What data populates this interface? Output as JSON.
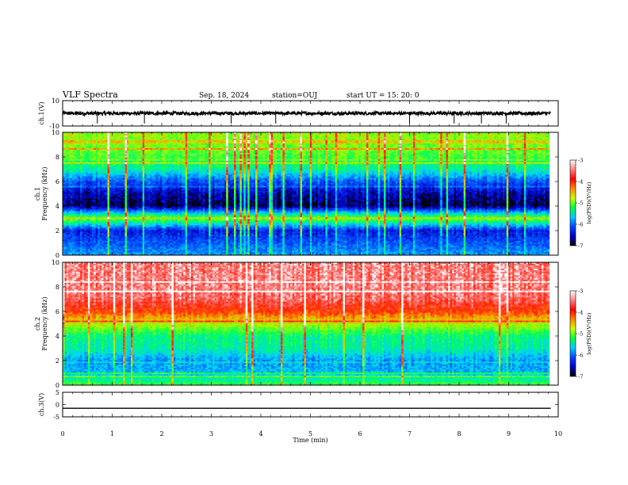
{
  "header": {
    "title": "VLF Spectra",
    "date": "Sep. 18, 2024",
    "station": "station=OUJ",
    "start": "start  UT  =   15: 20: 0"
  },
  "colorbar": {
    "label": "log(PSD)(V²/Hz)",
    "ticks": [
      "-3",
      "-4",
      "-5",
      "-6",
      "-7"
    ],
    "range": [
      -7,
      -3
    ],
    "colors": [
      "#000000",
      "#0000cc",
      "#0044ff",
      "#00ccff",
      "#00ff44",
      "#ccff00",
      "#ff8800",
      "#ff0000",
      "#ff8080",
      "#ffffff"
    ]
  },
  "chart_data": [
    {
      "type": "line",
      "panel": "ch.1 waveform",
      "ylabel": "ch.1(V)",
      "ylim": [
        -10,
        10
      ],
      "yticks": [
        "10",
        "-10"
      ],
      "xlim": [
        0,
        10
      ],
      "baseline": 0,
      "spikes_min": [
        0.7,
        1.65,
        3.4,
        4.3,
        7.0,
        7.9,
        8.45,
        8.95
      ]
    },
    {
      "type": "heatmap",
      "panel": "ch.1 spectrogram",
      "ylabel": "ch.1\nFrequency (kHz)",
      "ylim": [
        0,
        10
      ],
      "yticks": [
        "10",
        "8",
        "6",
        "4",
        "2",
        "0"
      ],
      "xlim": [
        0,
        10
      ],
      "data_end_min": 9.82,
      "band_profile_kHz": [
        0,
        1,
        2,
        3,
        4,
        5,
        6,
        7,
        8,
        9,
        10
      ],
      "band_profile_log_psd": [
        -5.9,
        -6.2,
        -6.5,
        -4.8,
        -6.9,
        -6.7,
        -6.2,
        -5.4,
        -5.0,
        -4.8,
        -4.7
      ]
    },
    {
      "type": "heatmap",
      "panel": "ch.2 spectrogram",
      "ylabel": "ch.2\nFrequency (kHz)",
      "ylim": [
        0,
        10
      ],
      "yticks": [
        "10",
        "8",
        "6",
        "4",
        "2",
        "0"
      ],
      "xlim": [
        0,
        10
      ],
      "data_end_min": 9.82,
      "band_profile_kHz": [
        0,
        1,
        2,
        3,
        4,
        5,
        6,
        7,
        8,
        9,
        10
      ],
      "band_profile_log_psd": [
        -5.0,
        -5.8,
        -5.9,
        -5.4,
        -5.3,
        -4.6,
        -3.8,
        -3.4,
        -3.3,
        -3.3,
        -3.3
      ]
    },
    {
      "type": "line",
      "panel": "ch.3 waveform",
      "ylabel": "ch.3(V)",
      "ylim": [
        -5,
        5
      ],
      "yticks": [
        "5",
        "0",
        "-5"
      ],
      "xlim": [
        0,
        10
      ],
      "values": [
        -1.5,
        -1.5
      ]
    }
  ],
  "xaxis": {
    "label": "Time (min)",
    "ticks": [
      "0",
      "1",
      "2",
      "3",
      "4",
      "5",
      "6",
      "7",
      "8",
      "9",
      "10"
    ]
  }
}
